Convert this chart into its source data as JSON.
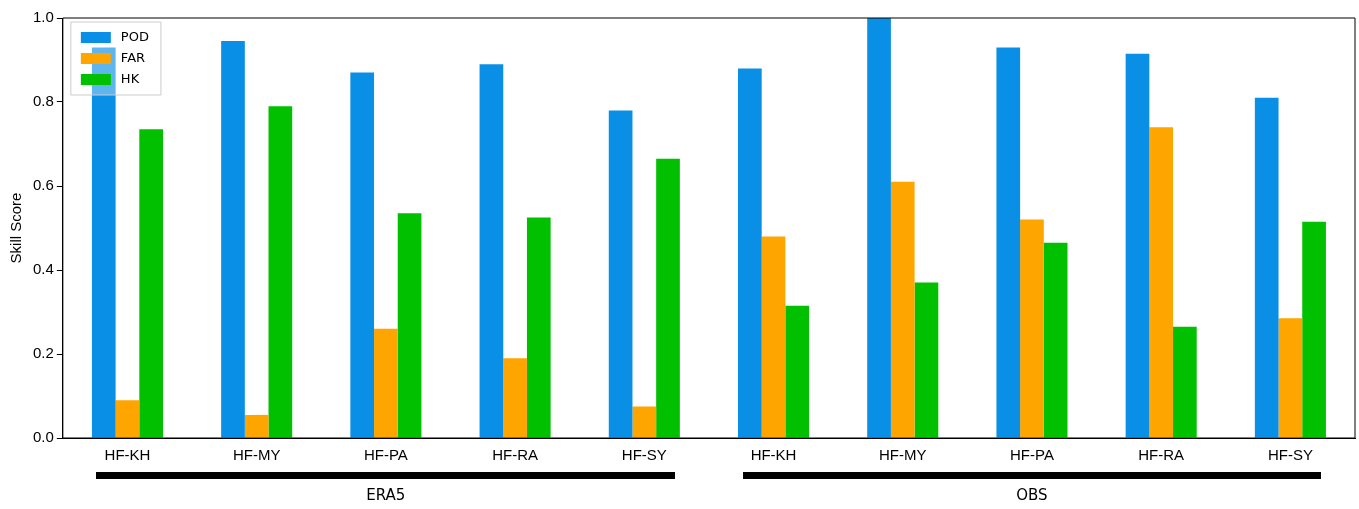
{
  "chart_data": {
    "type": "bar",
    "ylabel": "Skill Score",
    "categories": [
      "HF-KH",
      "HF-MY",
      "HF-PA",
      "HF-RA",
      "HF-SY",
      "HF-KH",
      "HF-MY",
      "HF-PA",
      "HF-RA",
      "HF-SY"
    ],
    "series": [
      {
        "name": "POD",
        "color": "#0a8fe6",
        "values": [
          0.93,
          0.945,
          0.87,
          0.89,
          0.78,
          0.88,
          1.0,
          0.93,
          0.915,
          0.81
        ]
      },
      {
        "name": "FAR",
        "color": "#ffa500",
        "values": [
          0.09,
          0.055,
          0.26,
          0.19,
          0.075,
          0.48,
          0.61,
          0.52,
          0.74,
          0.285
        ]
      },
      {
        "name": "HK",
        "color": "#00c000",
        "values": [
          0.735,
          0.79,
          0.535,
          0.525,
          0.665,
          0.315,
          0.37,
          0.465,
          0.265,
          0.515
        ]
      }
    ],
    "ylim": [
      0,
      1
    ],
    "yticks": [
      {
        "value": 0,
        "label": "0.0"
      },
      0.2,
      0.4,
      0.6,
      0.8,
      {
        "value": 1,
        "label": "1.0"
      }
    ],
    "legend": "top left",
    "grid": false,
    "annotations": [
      "ERA5",
      "OBS"
    ]
  }
}
